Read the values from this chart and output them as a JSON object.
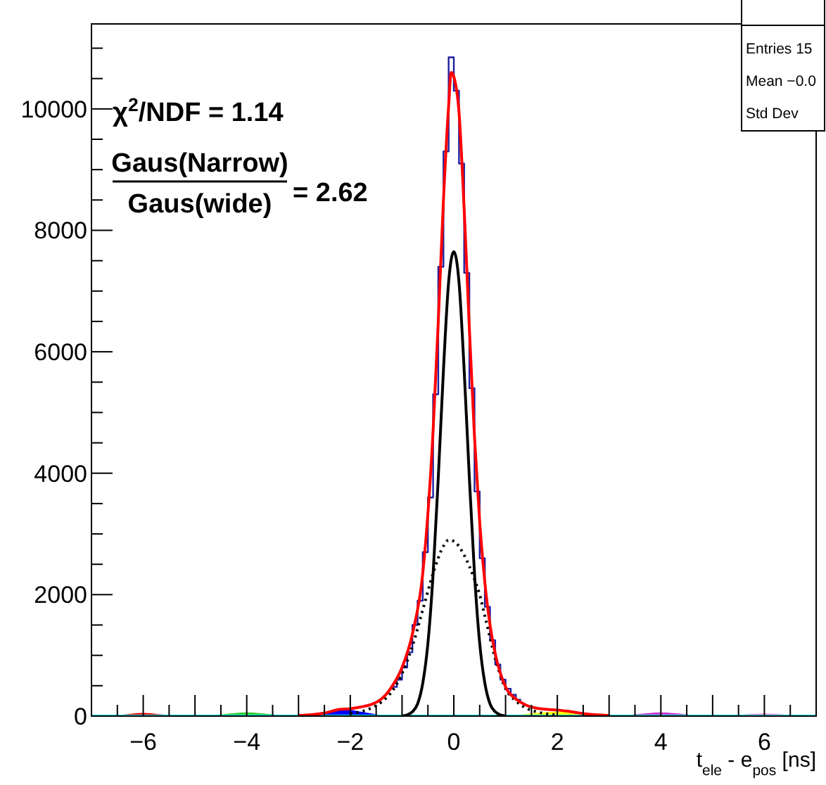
{
  "chart_data": {
    "type": "line",
    "xlabel": "t$_{ele}$ - e$_{pos}$ [ns]",
    "annotations": [
      "χ$^{2}$/NDF = 1.14",
      "Gaus(Narrow)",
      "Gaus(wide)",
      "= 2.62",
      "Entries 15",
      "Mean −0.0",
      "Std Dev"
    ],
    "xlim": [
      -7,
      7
    ],
    "xticks": [
      {
        "value": -6.5,
        "label": null
      },
      {
        "value": -6,
        "label": "−6"
      },
      {
        "value": -5.5,
        "label": null
      },
      {
        "value": -5,
        "label": null
      },
      {
        "value": -4.5,
        "label": null
      },
      {
        "value": -4,
        "label": "−4"
      },
      {
        "value": -3.5,
        "label": null
      },
      {
        "value": -3,
        "label": null
      },
      {
        "value": -2.5,
        "label": null
      },
      {
        "value": -2,
        "label": "−2"
      },
      {
        "value": -1.5,
        "label": null
      },
      {
        "value": -1,
        "label": null
      },
      {
        "value": -0.5,
        "label": null
      },
      0,
      {
        "value": 0.5,
        "label": null
      },
      {
        "value": 1,
        "label": null
      },
      {
        "value": 1.5,
        "label": null
      },
      2,
      {
        "value": 2.5,
        "label": null
      },
      {
        "value": 3,
        "label": null
      },
      {
        "value": 3.5,
        "label": null
      },
      4,
      {
        "value": 4.5,
        "label": null
      },
      {
        "value": 5,
        "label": null
      },
      {
        "value": 5.5,
        "label": null
      },
      6,
      {
        "value": 6.5,
        "label": null
      }
    ],
    "ylim": [
      0,
      11400
    ],
    "yticks": [
      0,
      {
        "value": 500,
        "label": null
      },
      {
        "value": 1000,
        "label": null
      },
      {
        "value": 1500,
        "label": null
      },
      2000,
      {
        "value": 2500,
        "label": null
      },
      {
        "value": 3000,
        "label": null
      },
      {
        "value": 3500,
        "label": null
      },
      4000,
      {
        "value": 4500,
        "label": null
      },
      {
        "value": 5000,
        "label": null
      },
      {
        "value": 5500,
        "label": null
      },
      6000,
      {
        "value": 6500,
        "label": null
      },
      {
        "value": 7000,
        "label": null
      },
      {
        "value": 7500,
        "label": null
      },
      8000,
      {
        "value": 8500,
        "label": null
      },
      {
        "value": 9000,
        "label": null
      },
      {
        "value": 9500,
        "label": null
      },
      10000,
      {
        "value": 10500,
        "label": null
      },
      {
        "value": 11000,
        "label": null
      }
    ],
    "series": [
      {
        "type": "area",
        "color": "#ff0000",
        "x": [
          -6.6,
          -6.3,
          -6.0,
          -5.7,
          -5.4
        ],
        "values": [
          0,
          20,
          40,
          20,
          0
        ]
      },
      {
        "type": "area",
        "color": "#33cc33",
        "x": [
          -4.7,
          -4.35,
          -4.0,
          -3.65,
          -3.3
        ],
        "values": [
          0,
          30,
          50,
          30,
          0
        ]
      },
      {
        "type": "area",
        "color": "#0000ff",
        "x": [
          -2.9,
          -2.5,
          -2.1,
          -1.8,
          -1.4
        ],
        "values": [
          0,
          50,
          100,
          60,
          0
        ]
      },
      {
        "type": "area",
        "color": "#ffff00",
        "x": [
          1.2,
          1.6,
          2.0,
          2.4,
          2.8
        ],
        "values": [
          0,
          40,
          60,
          40,
          0
        ]
      },
      {
        "type": "area",
        "color": "#cc33cc",
        "x": [
          3.3,
          3.65,
          4.0,
          4.35,
          4.7
        ],
        "values": [
          0,
          30,
          50,
          30,
          0
        ]
      },
      {
        "type": "area",
        "color": "#ff66cc",
        "x": [
          5.4,
          5.7,
          6.0,
          6.3,
          6.6
        ],
        "values": [
          0,
          20,
          30,
          20,
          0
        ]
      },
      {
        "color": "#00ffff",
        "x": [
          -7,
          7
        ],
        "values": [
          0,
          0
        ]
      },
      {
        "type": "step",
        "color": "#1f1f9f",
        "x": [
          -1.2,
          -1.1,
          -1.0,
          -0.9,
          -0.8,
          -0.7,
          -0.6,
          -0.5,
          -0.4,
          -0.3,
          -0.2,
          -0.1,
          0.0,
          0.1,
          0.2,
          0.3,
          0.4,
          0.5,
          0.6,
          0.7,
          0.8,
          0.9,
          1.0,
          1.1,
          1.2,
          1.3
        ],
        "values": [
          480,
          600,
          800,
          1050,
          1500,
          1900,
          2700,
          3600,
          5300,
          7400,
          9300,
          10850,
          10300,
          9100,
          7300,
          5400,
          3700,
          2600,
          1800,
          1250,
          850,
          600,
          450,
          350,
          270,
          270
        ]
      },
      {
        "color": "#000000",
        "line_style": "dotted",
        "x": [
          -2.0,
          -1.6,
          -1.4,
          -1.2,
          -1.0,
          -0.8,
          -0.6,
          -0.4,
          -0.2,
          -0.1,
          0.0,
          0.2,
          0.4,
          0.5,
          0.6,
          0.8,
          1.0,
          1.2,
          1.4,
          1.6,
          2.0
        ],
        "values": [
          40,
          130,
          230,
          400,
          700,
          1150,
          1750,
          2350,
          2800,
          2900,
          2880,
          2650,
          2250,
          2000,
          1650,
          950,
          450,
          250,
          130,
          70,
          20
        ]
      },
      {
        "color": "#000000",
        "line_style": "solid",
        "x": [
          -1.0,
          -0.9,
          -0.8,
          -0.7,
          -0.6,
          -0.5,
          -0.4,
          -0.3,
          -0.2,
          -0.1,
          0.0,
          0.1,
          0.2,
          0.3,
          0.4,
          0.5,
          0.6,
          0.7,
          0.8,
          0.9,
          1.0
        ],
        "values": [
          0,
          20,
          70,
          200,
          540,
          1200,
          2340,
          3930,
          5700,
          7150,
          7650,
          7150,
          5700,
          3930,
          2340,
          1200,
          540,
          200,
          70,
          20,
          0
        ]
      },
      {
        "color": "#ff0000",
        "line_style": "solid",
        "x": [
          -3.0,
          -2.5,
          -2.2,
          -2.0,
          -1.8,
          -1.6,
          -1.4,
          -1.2,
          -1.0,
          -0.8,
          -0.6,
          -0.4,
          -0.3,
          -0.2,
          -0.1,
          -0.05,
          0.0,
          0.1,
          0.2,
          0.3,
          0.4,
          0.5,
          0.6,
          0.7,
          0.8,
          1.0,
          1.2,
          1.4,
          1.6,
          1.8,
          2.0,
          2.2,
          2.5,
          3.0
        ],
        "values": [
          10,
          50,
          110,
          120,
          150,
          190,
          280,
          480,
          800,
          1350,
          2350,
          4700,
          6500,
          8500,
          10050,
          10600,
          10530,
          9950,
          8350,
          6400,
          4590,
          3200,
          2200,
          1500,
          1030,
          480,
          280,
          180,
          130,
          110,
          100,
          80,
          40,
          10
        ]
      }
    ]
  }
}
